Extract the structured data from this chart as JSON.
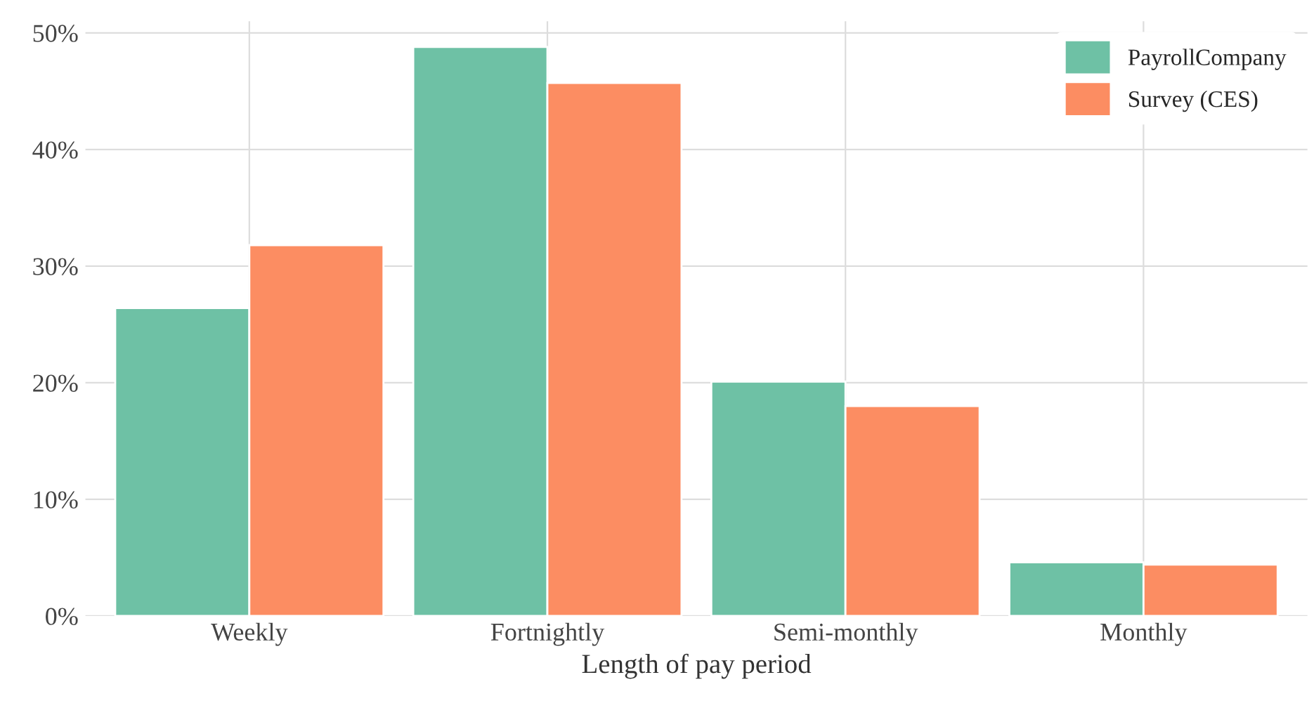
{
  "chart_data": {
    "type": "bar",
    "xlabel": "Length of pay period",
    "categories": [
      "Weekly",
      "Fortnightly",
      "Semi-monthly",
      "Monthly"
    ],
    "series": [
      {
        "name": "PayrollCompany",
        "color": "#6ec1a5",
        "values": [
          26.4,
          48.8,
          20.1,
          4.6
        ]
      },
      {
        "name": "Survey (CES)",
        "color": "#fc8d62",
        "values": [
          31.8,
          45.7,
          18.0,
          4.4
        ]
      }
    ],
    "ylim": [
      0,
      51
    ],
    "yticks": [
      {
        "value": 0,
        "label": "0%"
      },
      {
        "value": 10,
        "label": "10%"
      },
      {
        "value": 20,
        "label": "20%"
      },
      {
        "value": 30,
        "label": "30%"
      },
      {
        "value": 40,
        "label": "40%"
      },
      {
        "value": 50,
        "label": "50%"
      }
    ],
    "grid": true,
    "legend": "top right"
  }
}
